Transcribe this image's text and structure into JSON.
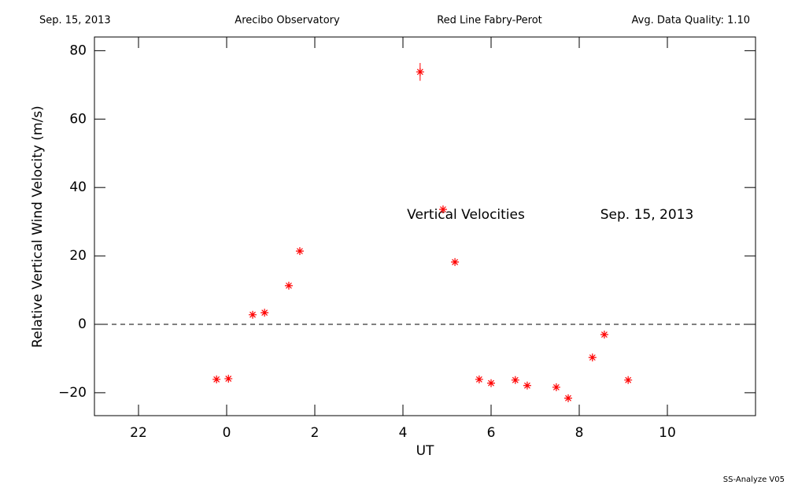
{
  "chart_data": {
    "type": "scatter",
    "header": [
      "Sep. 15, 2013",
      "Arecibo Observatory",
      "Red Line Fabry-Perot",
      "Avg. Data Quality: 1.10"
    ],
    "annotations": [
      "Vertical Velocities",
      "Sep. 15, 2013"
    ],
    "footer": "SS-Analyze V05",
    "x_label": "UT",
    "y_label": "Relative Vertical Wind Velocity (m/s)",
    "x": [
      -0.23,
      0.04,
      0.59,
      0.86,
      1.41,
      1.66,
      4.39,
      4.91,
      5.18,
      5.73,
      6.0,
      6.55,
      6.82,
      7.48,
      7.75,
      8.3,
      8.57,
      9.11
    ],
    "values": [
      -16.1,
      -15.9,
      2.8,
      3.4,
      11.3,
      21.4,
      73.8,
      33.6,
      18.2,
      -16.1,
      -17.2,
      -16.3,
      -17.9,
      -18.4,
      -21.6,
      -9.7,
      -3.0,
      -16.3
    ],
    "errors": [
      0.5,
      0.5,
      0.5,
      0.5,
      0.5,
      0.5,
      2.6,
      0.5,
      0.5,
      0.5,
      0.5,
      0.5,
      0.5,
      0.5,
      0.5,
      0.5,
      0.5,
      0.5
    ],
    "color": "#ff0000",
    "reference_line": 0,
    "xlim": [
      -3,
      12
    ],
    "xticks": [
      {
        "value": -2,
        "label": "22"
      },
      0,
      2,
      4,
      6,
      8,
      10
    ],
    "ylim": [
      -26.7,
      84
    ],
    "yticks": [
      {
        "value": -20,
        "label": "−20"
      },
      0,
      20,
      40,
      60,
      80
    ]
  }
}
